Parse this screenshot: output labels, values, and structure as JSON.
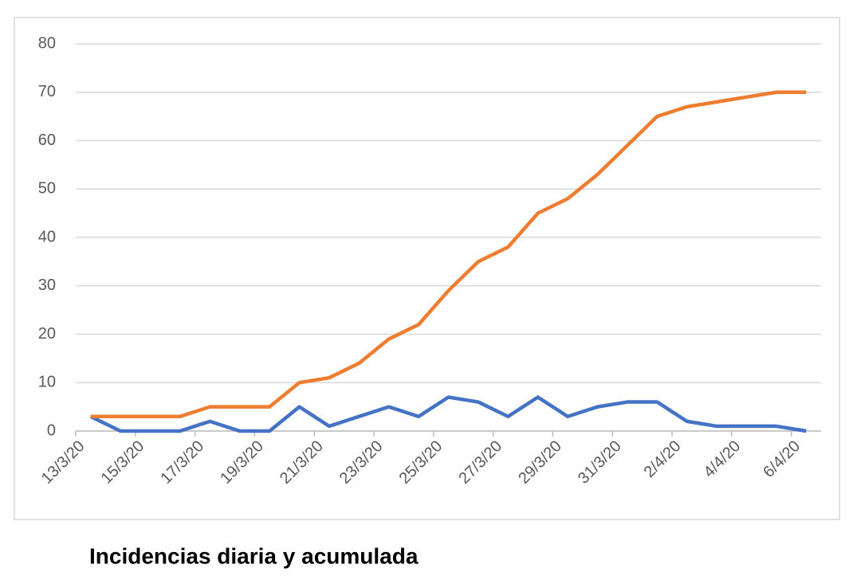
{
  "chart_data": {
    "type": "line",
    "title": "Incidencias diaria y acumulada",
    "categories": [
      "13/3/20",
      null,
      "15/3/20",
      null,
      "17/3/20",
      null,
      "19/3/20",
      null,
      "21/3/20",
      null,
      "23/3/20",
      null,
      "25/3/20",
      null,
      "27/3/20",
      null,
      "29/3/20",
      null,
      "31/3/20",
      null,
      "2/4/20",
      null,
      "4/4/20",
      null,
      "6/4/20"
    ],
    "series": [
      {
        "color": "#4472c4",
        "values": [
          3,
          0,
          0,
          0,
          2,
          0,
          0,
          5,
          1,
          3,
          5,
          3,
          7,
          6,
          3,
          7,
          3,
          5,
          6,
          6,
          2,
          1,
          1,
          1,
          0
        ]
      },
      {
        "color": "#ed7d31",
        "values": [
          3,
          3,
          3,
          3,
          5,
          5,
          5,
          10,
          11,
          14,
          19,
          22,
          29,
          35,
          38,
          45,
          48,
          53,
          59,
          65,
          67,
          68,
          69,
          70,
          70
        ]
      }
    ],
    "ylim": [
      0,
      80
    ],
    "yticks": [
      0,
      10,
      20,
      30,
      40,
      50,
      60,
      70,
      80
    ],
    "grid": true
  }
}
